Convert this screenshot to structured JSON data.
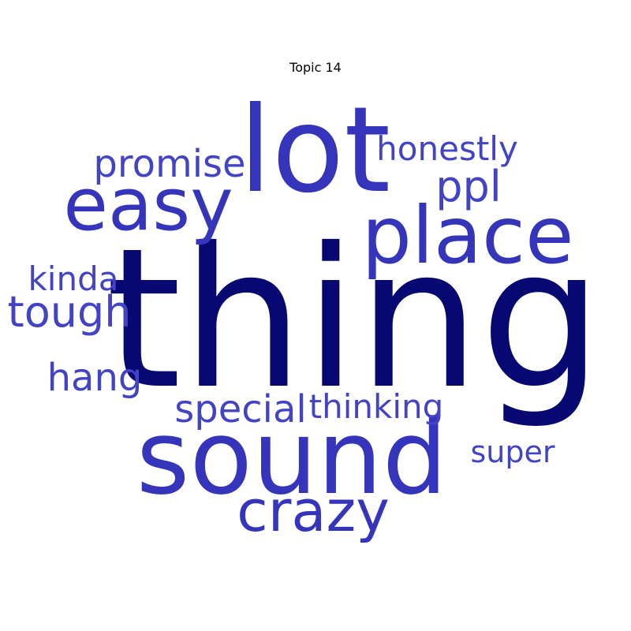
{
  "chart_data": {
    "type": "wordcloud",
    "title": "Topic 14",
    "palette": {
      "dark": "#070872",
      "mid": "#3535bb",
      "light": "#4343c6"
    },
    "words": [
      {
        "text": "thing",
        "tone": "dark"
      },
      {
        "text": "sound",
        "tone": "mid"
      },
      {
        "text": "lot",
        "tone": "mid"
      },
      {
        "text": "place",
        "tone": "mid"
      },
      {
        "text": "easy",
        "tone": "mid"
      },
      {
        "text": "crazy",
        "tone": "mid"
      },
      {
        "text": "promise",
        "tone": "light"
      },
      {
        "text": "honestly",
        "tone": "light"
      },
      {
        "text": "ppl",
        "tone": "light"
      },
      {
        "text": "tough",
        "tone": "light"
      },
      {
        "text": "kinda",
        "tone": "light"
      },
      {
        "text": "hang",
        "tone": "light"
      },
      {
        "text": "special",
        "tone": "light"
      },
      {
        "text": "thinking",
        "tone": "light"
      },
      {
        "text": "super",
        "tone": "light"
      }
    ]
  }
}
